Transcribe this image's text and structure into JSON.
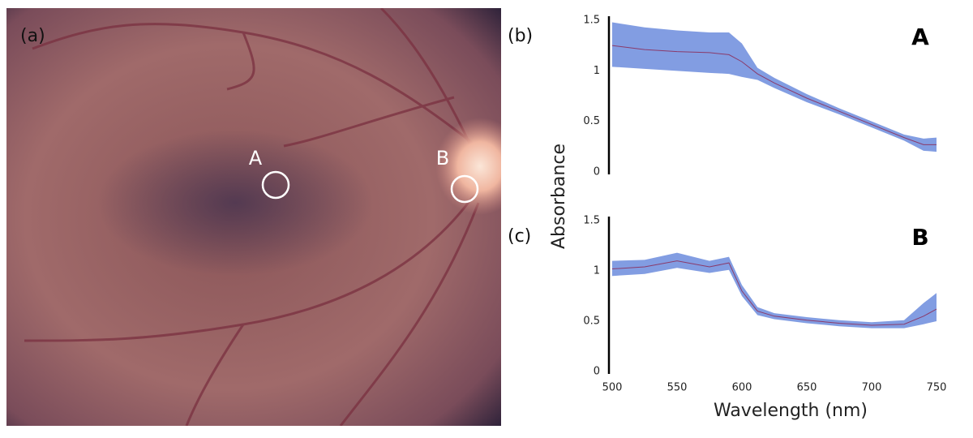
{
  "image": {
    "panel_label": "(a)",
    "markers": [
      "A",
      "B"
    ]
  },
  "chart_data": [
    {
      "type": "line",
      "panel_label": "(b)",
      "title": "A",
      "ylabel": "Absorbance",
      "x": [
        500,
        525,
        550,
        575,
        590,
        600,
        612,
        625,
        650,
        675,
        700,
        725,
        740,
        750
      ],
      "xlim": [
        500,
        750
      ],
      "ylim": [
        0,
        1.5
      ],
      "yticks": [
        0,
        0.5,
        1,
        1.5
      ],
      "series": [
        {
          "color": "#7b98e0",
          "line_color": "#8a3a6a",
          "values": [
            1.25,
            1.21,
            1.19,
            1.18,
            1.16,
            1.09,
            0.97,
            0.88,
            0.73,
            0.6,
            0.47,
            0.34,
            0.27,
            0.27
          ],
          "upper": [
            1.48,
            1.43,
            1.4,
            1.38,
            1.38,
            1.27,
            1.03,
            0.93,
            0.77,
            0.63,
            0.5,
            0.37,
            0.33,
            0.34
          ],
          "lower": [
            1.04,
            1.02,
            1.0,
            0.98,
            0.97,
            0.94,
            0.91,
            0.83,
            0.69,
            0.57,
            0.44,
            0.31,
            0.21,
            0.2
          ]
        }
      ]
    },
    {
      "type": "line",
      "panel_label": "(c)",
      "title": "B",
      "xlabel": "Wavelength (nm)",
      "x": [
        500,
        525,
        550,
        575,
        590,
        600,
        612,
        625,
        650,
        675,
        700,
        725,
        740,
        750
      ],
      "xlim": [
        500,
        750
      ],
      "xticks": [
        500,
        550,
        600,
        650,
        700,
        750
      ],
      "ylim": [
        0,
        1.5
      ],
      "yticks": [
        0,
        0.5,
        1,
        1.5
      ],
      "series": [
        {
          "color": "#7b98e0",
          "line_color": "#8a3a6a",
          "values": [
            1.02,
            1.04,
            1.1,
            1.04,
            1.08,
            0.8,
            0.6,
            0.55,
            0.51,
            0.48,
            0.46,
            0.47,
            0.55,
            0.62
          ],
          "upper": [
            1.1,
            1.11,
            1.18,
            1.1,
            1.14,
            0.86,
            0.64,
            0.58,
            0.54,
            0.51,
            0.49,
            0.51,
            0.68,
            0.78
          ],
          "lower": [
            0.95,
            0.97,
            1.03,
            0.98,
            1.01,
            0.75,
            0.56,
            0.52,
            0.48,
            0.45,
            0.43,
            0.43,
            0.47,
            0.5
          ]
        }
      ]
    }
  ]
}
